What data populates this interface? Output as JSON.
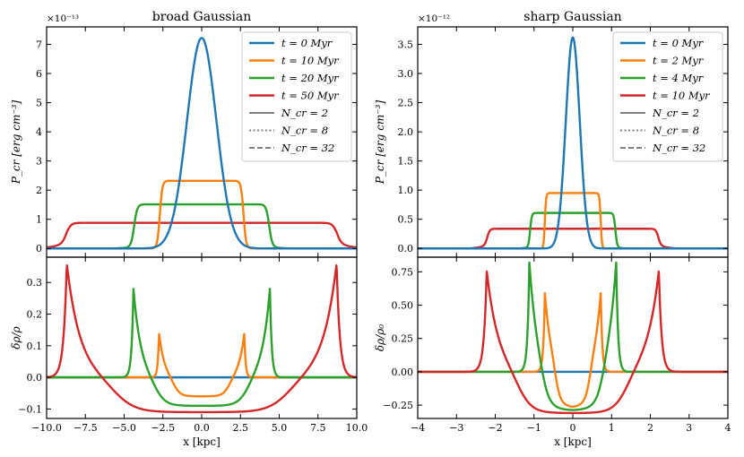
{
  "chart_data": {
    "type": "line",
    "panels": [
      {
        "id": "broad",
        "title": "broad Gaussian",
        "xlabel": "x [kpc]",
        "xlim": [
          -10,
          10
        ],
        "xticks": [
          -10,
          -7.5,
          -5,
          -2.5,
          0,
          2.5,
          5,
          7.5,
          10
        ],
        "xtick_labels": [
          "−10.0",
          "−7.5",
          "−5.0",
          "−2.5",
          "0.0",
          "2.5",
          "5.0",
          "7.5",
          "10.0"
        ],
        "top": {
          "ylabel": "P_cr [erg cm⁻³]",
          "multiplier": "×10⁻¹³",
          "ylim": [
            -0.3,
            7.6
          ],
          "yticks": [
            0,
            1,
            2,
            3,
            4,
            5,
            6,
            7
          ],
          "ytick_labels": [
            "0",
            "1",
            "2",
            "3",
            "4",
            "5",
            "6",
            "7"
          ],
          "series": [
            {
              "name": "t = 0 Myr",
              "color": "#1f77b4",
              "kind": "gauss",
              "amp": 7.22,
              "sigma": 0.95
            },
            {
              "name": "t = 10 Myr",
              "color": "#ff7f0e",
              "kind": "plateau",
              "level": 2.32,
              "edge": 2.7,
              "width": 0.45,
              "tail": 0
            },
            {
              "name": "t = 20 Myr",
              "color": "#2ca02c",
              "kind": "plateau",
              "level": 1.44,
              "edge": 4.35,
              "width": 0.55,
              "tail": 0.05
            },
            {
              "name": "t = 50 Myr",
              "color": "#d62728",
              "kind": "plateau",
              "level": 0.65,
              "edge": 8.7,
              "width": 0.8,
              "tail": 0.35
            }
          ],
          "legend": [
            {
              "label": "t = 0 Myr",
              "color": "#1f77b4",
              "style": "solid-thick"
            },
            {
              "label": "t = 10 Myr",
              "color": "#ff7f0e",
              "style": "solid-thick"
            },
            {
              "label": "t = 20 Myr",
              "color": "#2ca02c",
              "style": "solid-thick"
            },
            {
              "label": "t = 50 Myr",
              "color": "#d62728",
              "style": "solid-thick"
            },
            {
              "label": "N_cr = 2",
              "color": "#808080",
              "style": "solid"
            },
            {
              "label": "N_cr = 8",
              "color": "#808080",
              "style": "dotted"
            },
            {
              "label": "N_cr = 32",
              "color": "#808080",
              "style": "dashed"
            }
          ]
        },
        "bottom": {
          "ylabel": "δρ/ρ",
          "ylim": [
            -0.13,
            0.38
          ],
          "yticks": [
            -0.1,
            0,
            0.1,
            0.2,
            0.3
          ],
          "ytick_labels": [
            "−0.1",
            "0.0",
            "0.1",
            "0.2",
            "0.3"
          ],
          "series": [
            {
              "name": "t = 0 Myr",
              "color": "#1f77b4",
              "kind": "flat"
            },
            {
              "name": "t = 10 Myr",
              "color": "#ff7f0e",
              "peak_x": 2.75,
              "peak": 0.14,
              "trough": -0.06,
              "inner": 1.8
            },
            {
              "name": "t = 20 Myr",
              "color": "#2ca02c",
              "peak_x": 4.4,
              "peak": 0.28,
              "trough": -0.09,
              "inner": 3.0
            },
            {
              "name": "t = 50 Myr",
              "color": "#d62728",
              "peak_x": 8.7,
              "peak": 0.36,
              "trough": -0.11,
              "inner": 5.6
            }
          ]
        }
      },
      {
        "id": "sharp",
        "title": "sharp Gaussian",
        "xlabel": "x [kpc]",
        "xlim": [
          -4,
          4
        ],
        "xticks": [
          -4,
          -3,
          -2,
          -1,
          0,
          1,
          2,
          3,
          4
        ],
        "xtick_labels": [
          "−4",
          "−3",
          "−2",
          "−1",
          "0",
          "1",
          "2",
          "3",
          "4"
        ],
        "top": {
          "ylabel": "P_cr [erg cm⁻³]",
          "multiplier": "×10⁻¹²",
          "ylim": [
            -0.15,
            3.8
          ],
          "yticks": [
            0,
            0.5,
            1,
            1.5,
            2,
            2.5,
            3,
            3.5
          ],
          "ytick_labels": [
            "0.0",
            "0.5",
            "1.0",
            "1.5",
            "2.0",
            "2.5",
            "3.0",
            "3.5"
          ],
          "series": [
            {
              "name": "t = 0 Myr",
              "color": "#1f77b4",
              "kind": "gauss",
              "amp": 3.62,
              "sigma": 0.18
            },
            {
              "name": "t = 2 Myr",
              "color": "#ff7f0e",
              "kind": "plateau",
              "level": 0.95,
              "edge": 0.72,
              "width": 0.09,
              "tail": 0
            },
            {
              "name": "t = 4 Myr",
              "color": "#2ca02c",
              "kind": "plateau",
              "level": 0.58,
              "edge": 1.1,
              "width": 0.12,
              "tail": 0.05
            },
            {
              "name": "t = 10 Myr",
              "color": "#d62728",
              "kind": "plateau",
              "level": 0.26,
              "edge": 2.2,
              "width": 0.18,
              "tail": 0.3
            }
          ],
          "legend": [
            {
              "label": "t = 0 Myr",
              "color": "#1f77b4",
              "style": "solid-thick"
            },
            {
              "label": "t = 2 Myr",
              "color": "#ff7f0e",
              "style": "solid-thick"
            },
            {
              "label": "t = 4 Myr",
              "color": "#2ca02c",
              "style": "solid-thick"
            },
            {
              "label": "t = 10 Myr",
              "color": "#d62728",
              "style": "solid-thick"
            },
            {
              "label": "N_cr = 2",
              "color": "#808080",
              "style": "solid"
            },
            {
              "label": "N_cr = 8",
              "color": "#808080",
              "style": "dotted"
            },
            {
              "label": "N_cr = 32",
              "color": "#808080",
              "style": "dashed"
            }
          ]
        },
        "bottom": {
          "ylabel": "δρ/ρ₀",
          "ylim": [
            -0.35,
            0.86
          ],
          "yticks": [
            -0.25,
            0,
            0.25,
            0.5,
            0.75
          ],
          "ytick_labels": [
            "−0.25",
            "0.00",
            "0.25",
            "0.50",
            "0.75"
          ],
          "series": [
            {
              "name": "t = 0 Myr",
              "color": "#1f77b4",
              "kind": "flat"
            },
            {
              "name": "t = 2 Myr",
              "color": "#ff7f0e",
              "peak_x": 0.72,
              "peak": 0.59,
              "trough": -0.27,
              "inner": 0.45
            },
            {
              "name": "t = 4 Myr",
              "color": "#2ca02c",
              "peak_x": 1.12,
              "peak": 0.82,
              "trough": -0.29,
              "inner": 0.8
            },
            {
              "name": "t = 10 Myr",
              "color": "#d62728",
              "peak_x": 2.22,
              "peak": 0.76,
              "trough": -0.31,
              "inner": 1.4
            }
          ]
        }
      }
    ]
  }
}
